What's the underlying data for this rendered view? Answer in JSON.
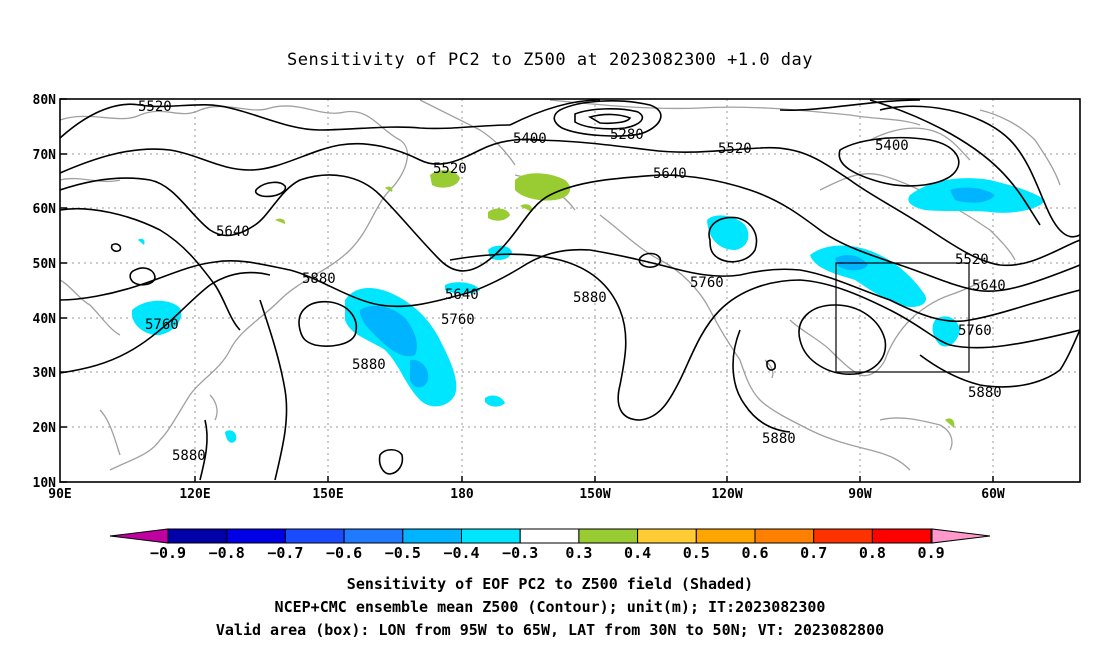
{
  "title": "Sensitivity of PC2 to Z500 at 2023082300 +1.0 day",
  "lat_ticks": [
    "80N",
    "70N",
    "60N",
    "50N",
    "40N",
    "30N",
    "20N",
    "10N"
  ],
  "lon_ticks": [
    "90E",
    "120E",
    "150E",
    "180",
    "150W",
    "120W",
    "90W",
    "60W"
  ],
  "contour_labels": [
    {
      "text": "5520",
      "id": "c1"
    },
    {
      "text": "5400",
      "id": "c2"
    },
    {
      "text": "5280",
      "id": "c3"
    },
    {
      "text": "5520",
      "id": "c4"
    },
    {
      "text": "5400",
      "id": "c5"
    },
    {
      "text": "5520",
      "id": "c6"
    },
    {
      "text": "5640",
      "id": "c7"
    },
    {
      "text": "5640",
      "id": "c8"
    },
    {
      "text": "5880",
      "id": "c9"
    },
    {
      "text": "5640",
      "id": "c10"
    },
    {
      "text": "5760",
      "id": "c11"
    },
    {
      "text": "5880",
      "id": "c12"
    },
    {
      "text": "5760",
      "id": "c13"
    },
    {
      "text": "5760",
      "id": "c14"
    },
    {
      "text": "5880",
      "id": "c15"
    },
    {
      "text": "5520",
      "id": "c16"
    },
    {
      "text": "5640",
      "id": "c17"
    },
    {
      "text": "5760",
      "id": "c18"
    },
    {
      "text": "5880",
      "id": "c19"
    },
    {
      "text": "5880",
      "id": "c20"
    },
    {
      "text": "5880",
      "id": "c21"
    }
  ],
  "colorbar": {
    "labels": [
      "-0.9",
      "-0.8",
      "-0.7",
      "-0.6",
      "-0.5",
      "-0.4",
      "-0.3",
      "0.3",
      "0.4",
      "0.5",
      "0.6",
      "0.7",
      "0.8",
      "0.9"
    ],
    "colors": [
      "#0000a8",
      "#0000e6",
      "#1a4bff",
      "#1f7aff",
      "#00b4ff",
      "#00e6ff",
      "#ffffff",
      "#99cc33",
      "#ffcc33",
      "#ffa500",
      "#ff7f00",
      "#ff3300",
      "#ff0000"
    ],
    "low_arrow_color": "#c000a0",
    "high_arrow_color": "#ff99cc"
  },
  "shading_colors": {
    "cyan": "#00e6ff",
    "light_blue": "#00b4ff",
    "green": "#99cc33"
  },
  "captions": {
    "line1": "Sensitivity of EOF PC2 to Z500 field (Shaded)",
    "line2": "NCEP+CMC ensemble mean Z500 (Contour); unit(m); IT:2023082300",
    "line3": "Valid area (box): LON from 95W to 65W, LAT from 30N to 50N; VT: 2023082800"
  }
}
